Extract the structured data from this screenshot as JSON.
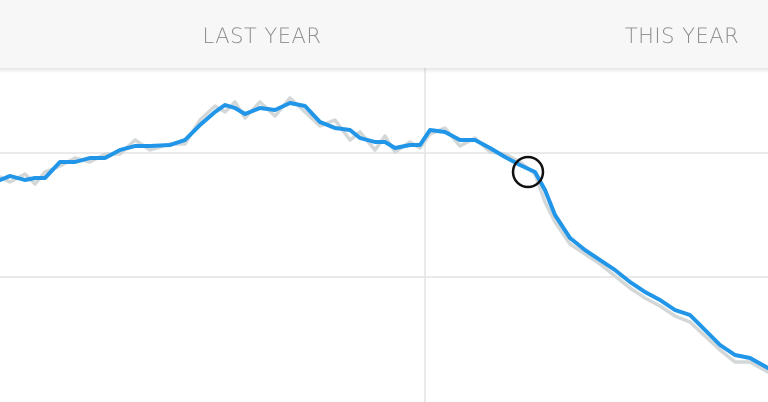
{
  "header": {
    "tabs": [
      "LAST YEAR",
      "THIS YEAR"
    ]
  },
  "chart_data": {
    "type": "line",
    "x": [
      0,
      10,
      25,
      35,
      45,
      60,
      75,
      90,
      105,
      120,
      135,
      150,
      170,
      185,
      200,
      215,
      225,
      235,
      245,
      260,
      275,
      290,
      305,
      320,
      335,
      350,
      360,
      375,
      385,
      395,
      410,
      420,
      430,
      445,
      460,
      475,
      490,
      505,
      520,
      535,
      545,
      555,
      570,
      585,
      600,
      615,
      630,
      645,
      660,
      675,
      690,
      705,
      720,
      735,
      750,
      768
    ],
    "xlim": [
      0,
      768
    ],
    "ylim": [
      0,
      334
    ],
    "series": [
      {
        "color": "#d3d7d8",
        "values": [
          225,
          220,
          228,
          218,
          230,
          236,
          244,
          240,
          248,
          248,
          262,
          252,
          258,
          258,
          282,
          296,
          290,
          300,
          284,
          300,
          286,
          304,
          290,
          276,
          282,
          262,
          270,
          252,
          266,
          250,
          260,
          254,
          268,
          274,
          256,
          264,
          250,
          248,
          240,
          228,
          200,
          180,
          158,
          148,
          138,
          126,
          114,
          104,
          96,
          86,
          80,
          66,
          52,
          40,
          40,
          30
        ]
      },
      {
        "color": "#2196e8",
        "values": [
          222,
          226,
          222,
          224,
          224,
          240,
          240,
          244,
          244,
          252,
          256,
          256,
          257,
          262,
          277,
          290,
          297,
          294,
          288,
          294,
          292,
          299,
          296,
          280,
          274,
          272,
          264,
          260,
          260,
          254,
          257,
          257,
          272,
          270,
          262,
          262,
          254,
          245,
          237,
          230,
          212,
          187,
          164,
          152,
          142,
          132,
          120,
          110,
          102,
          92,
          87,
          72,
          57,
          47,
          44,
          34
        ]
      }
    ]
  }
}
